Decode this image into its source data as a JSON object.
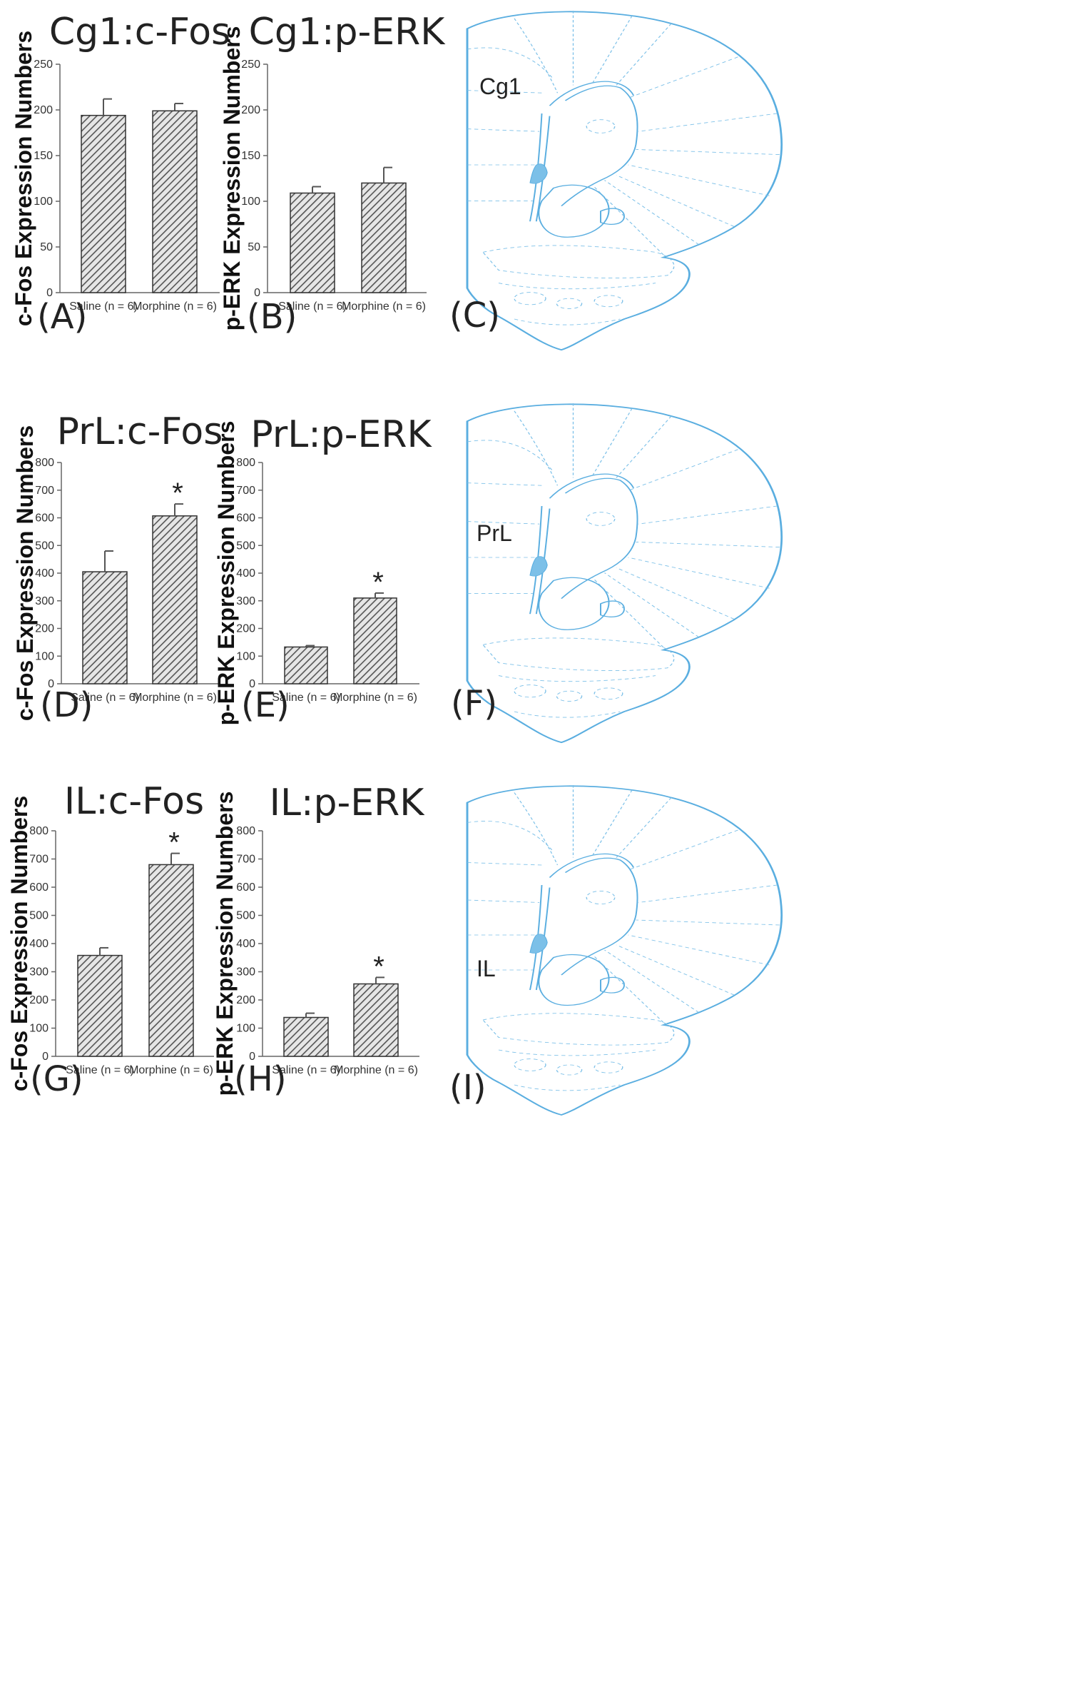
{
  "chart_data": [
    {
      "type": "bar",
      "panel": "(A)",
      "title": "Cg1:c-Fos",
      "ylabel": "c-Fos Expression Numbers",
      "xlabel": "",
      "ylim": [
        0,
        250
      ],
      "yticks": [
        0,
        50,
        100,
        150,
        200,
        250
      ],
      "categories": [
        "Saline (n = 6)",
        "Morphine (n = 6)"
      ],
      "values": [
        194,
        199
      ],
      "errors": [
        18,
        8
      ],
      "significant": [
        false,
        false
      ],
      "marker": "*"
    },
    {
      "type": "bar",
      "panel": "(B)",
      "title": "Cg1:p-ERK",
      "ylabel": "p-ERK Expression Numbers",
      "xlabel": "",
      "ylim": [
        0,
        250
      ],
      "yticks": [
        0,
        50,
        100,
        150,
        200,
        250
      ],
      "categories": [
        "Saline (n = 6)",
        "Morphine (n = 6)"
      ],
      "values": [
        109,
        120
      ],
      "errors": [
        7,
        17
      ],
      "significant": [
        false,
        false
      ],
      "marker": "*"
    },
    {
      "type": "bar",
      "panel": "(D)",
      "title": "PrL:c-Fos",
      "ylabel": "c-Fos Expression Numbers",
      "xlabel": "",
      "ylim": [
        0,
        800
      ],
      "yticks": [
        0,
        100,
        200,
        300,
        400,
        500,
        600,
        700,
        800
      ],
      "categories": [
        "Saline (n = 6)",
        "Morphine (n = 6)"
      ],
      "values": [
        405,
        607
      ],
      "errors": [
        75,
        43
      ],
      "significant": [
        false,
        true
      ],
      "marker": "*"
    },
    {
      "type": "bar",
      "panel": "(E)",
      "title": "PrL:p-ERK",
      "ylabel": "p-ERK Expression Numbers",
      "xlabel": "",
      "ylim": [
        0,
        800
      ],
      "yticks": [
        0,
        100,
        200,
        300,
        400,
        500,
        600,
        700,
        800
      ],
      "categories": [
        "Saline (n = 6)",
        "Morphine (n = 6)"
      ],
      "values": [
        133,
        310
      ],
      "errors": [
        5,
        18
      ],
      "significant": [
        false,
        true
      ],
      "marker": "*"
    },
    {
      "type": "bar",
      "panel": "(G)",
      "title": "IL:c-Fos",
      "ylabel": "c-Fos Expression Numbers",
      "xlabel": "",
      "ylim": [
        0,
        800
      ],
      "yticks": [
        0,
        100,
        200,
        300,
        400,
        500,
        600,
        700,
        800
      ],
      "categories": [
        "Saline (n = 6)",
        "Morphine (n = 6)"
      ],
      "values": [
        358,
        680
      ],
      "errors": [
        27,
        40
      ],
      "significant": [
        false,
        true
      ],
      "marker": "*"
    },
    {
      "type": "bar",
      "panel": "(H)",
      "title": "IL:p-ERK",
      "ylabel": "p-ERK Expression Numbers",
      "xlabel": "",
      "ylim": [
        0,
        800
      ],
      "yticks": [
        0,
        100,
        200,
        300,
        400,
        500,
        600,
        700,
        800
      ],
      "categories": [
        "Saline (n = 6)",
        "Morphine (n = 6)"
      ],
      "values": [
        138,
        257
      ],
      "errors": [
        15,
        23
      ],
      "significant": [
        false,
        true
      ],
      "marker": "*"
    }
  ],
  "brain_panels": [
    {
      "panel": "(C)",
      "region": "Cg1"
    },
    {
      "panel": "(F)",
      "region": "PrL"
    },
    {
      "panel": "(I)",
      "region": "IL"
    }
  ],
  "colors": {
    "bar_hatch": "#555555",
    "axis": "#666666",
    "brain_line": "#5aaee0",
    "brain_fill": "#7cc0e8",
    "text": "#222222"
  }
}
